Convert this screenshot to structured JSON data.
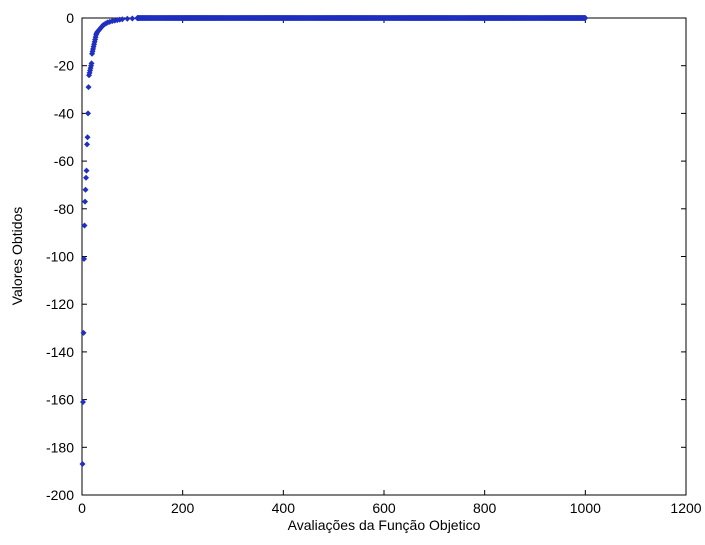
{
  "chart_data": {
    "type": "scatter",
    "xlabel": "Avaliações da Função Objetico",
    "ylabel": "Valores Obtidos",
    "xlim": [
      0,
      1200
    ],
    "ylim": [
      -200,
      0
    ],
    "xticks": [
      0,
      200,
      400,
      600,
      800,
      1000,
      1200
    ],
    "yticks": [
      0,
      -20,
      -40,
      -60,
      -80,
      -100,
      -120,
      -140,
      -160,
      -180,
      -200
    ],
    "grid": false,
    "marker": "diamond",
    "marker_color": "#1f2fbf",
    "series": [
      {
        "x": [
          1,
          2,
          3,
          4,
          5,
          6,
          7,
          8,
          9,
          10,
          11,
          12,
          13,
          14,
          15,
          16,
          17,
          18,
          19,
          20,
          21,
          22,
          23,
          24,
          25,
          26,
          27,
          28,
          29,
          30,
          32,
          34,
          36,
          38,
          40,
          42,
          45,
          48,
          51,
          55,
          60,
          65,
          70,
          75,
          80,
          90,
          100,
          110
        ],
        "y": [
          -187,
          -161,
          -132,
          -101,
          -87,
          -77,
          -72,
          -67,
          -64,
          -53,
          -50,
          -40,
          -29,
          -24,
          -23,
          -22,
          -21,
          -20,
          -19,
          -15,
          -14,
          -13,
          -12,
          -11,
          -10,
          -9,
          -8,
          -7,
          -6.5,
          -6,
          -5.5,
          -5,
          -4.5,
          -4,
          -3.5,
          -3,
          -2.6,
          -2.2,
          -1.9,
          -1.6,
          -1.3,
          -1.1,
          -0.9,
          -0.7,
          -0.5,
          -0.3,
          -0.2,
          -0.1
        ]
      }
    ],
    "plateau": {
      "x_start": 110,
      "x_end": 1000,
      "y": 0
    }
  }
}
